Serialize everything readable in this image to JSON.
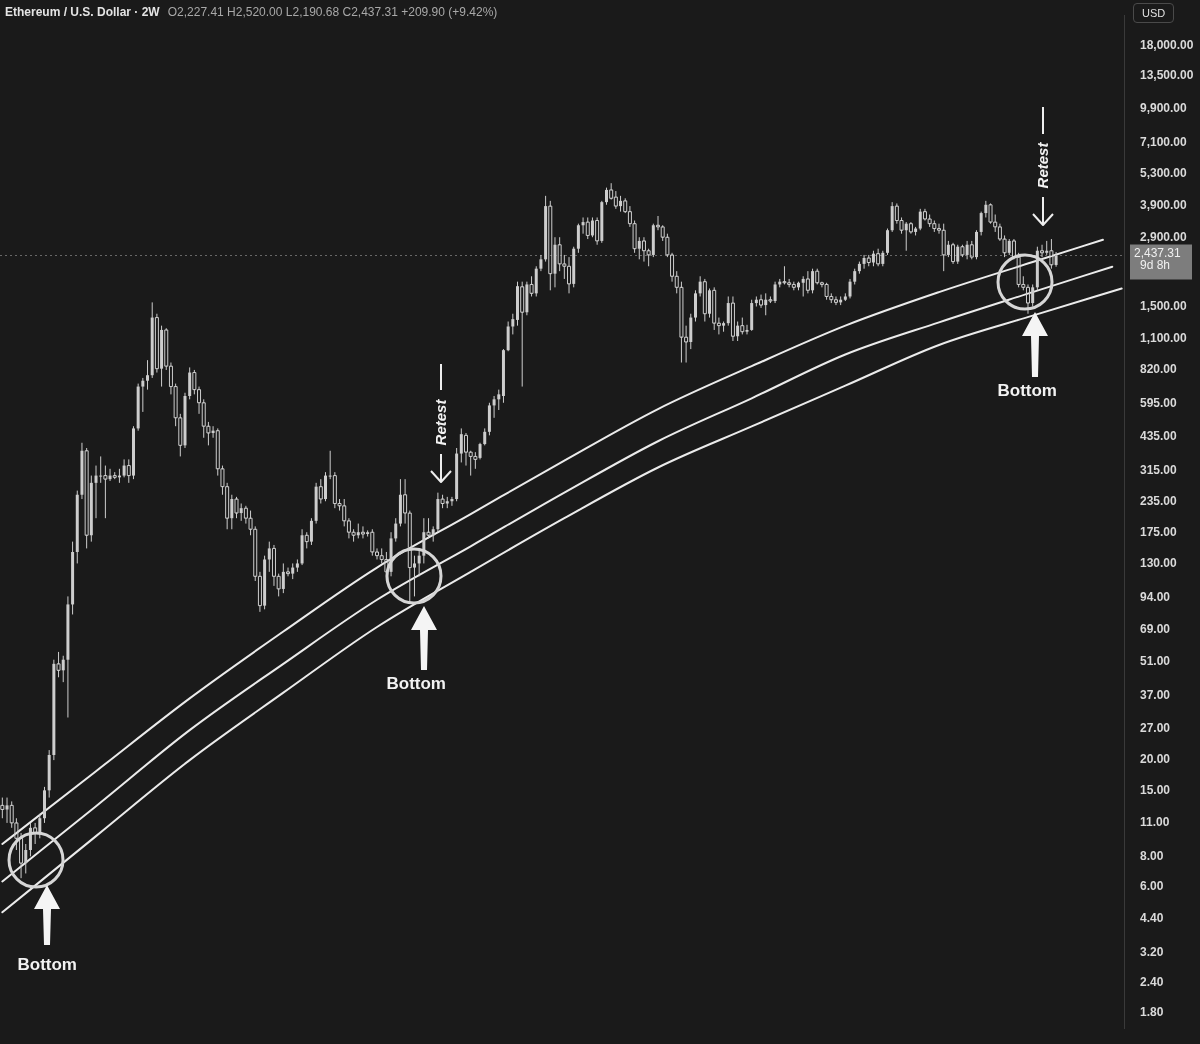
{
  "chart_data": {
    "type": "candlestick",
    "title": "Ethereum / U.S. Dollar · 2W",
    "subtitle": "O2,227.41 H2,520.00 L2,190.68 C2,437.31 +209.90 (+9.42%)",
    "ylabel": "USD",
    "annotations": [
      "Bottom",
      "Bottom",
      "Bottom",
      "Retest",
      "Retest",
      "9d 8h"
    ],
    "categories": [
      null,
      null,
      null,
      null,
      null,
      null,
      null,
      null,
      null,
      null,
      null,
      null,
      null,
      null,
      null,
      null,
      null,
      null,
      null,
      null,
      null,
      null,
      null,
      null,
      null,
      null,
      null,
      null,
      null,
      null,
      null,
      null,
      null,
      null,
      null,
      null,
      null,
      null,
      null,
      null,
      null,
      null,
      null,
      null,
      null,
      null,
      null,
      null,
      null,
      null,
      null,
      null,
      null,
      null,
      null,
      null,
      null,
      null,
      null,
      null,
      null,
      null,
      null,
      null,
      null,
      null,
      null,
      null,
      null,
      null,
      null,
      null,
      null,
      null,
      null,
      null,
      null,
      null,
      null,
      null,
      null,
      null,
      null,
      null,
      null,
      null,
      null,
      null,
      null,
      null,
      null,
      null,
      null,
      null,
      null,
      null,
      null,
      null,
      null,
      null,
      null,
      null,
      null,
      null,
      null,
      null,
      null,
      null,
      null,
      null,
      null,
      null,
      null,
      null,
      null,
      null,
      null,
      null,
      null,
      null,
      null,
      null,
      null,
      null,
      null,
      null,
      null,
      null,
      null,
      null,
      null,
      null,
      null,
      null,
      null,
      null,
      null,
      null,
      null,
      null,
      null,
      null,
      null,
      null,
      null,
      null,
      null,
      null,
      null,
      null,
      null,
      null,
      null,
      null,
      null,
      null,
      null,
      null,
      null,
      null,
      null,
      null,
      null,
      null,
      null,
      null,
      null,
      null,
      null,
      null,
      null,
      null,
      null,
      null,
      null,
      null,
      null,
      null,
      null,
      null,
      null,
      null,
      null,
      null,
      null,
      null,
      null,
      null,
      null,
      null,
      null,
      null,
      null,
      null,
      null,
      null,
      null,
      null,
      null,
      null,
      null,
      null,
      null,
      null,
      null,
      null,
      null,
      null,
      null,
      null,
      null,
      null,
      null,
      null,
      null,
      null,
      null,
      null,
      null,
      null,
      null,
      null,
      null,
      null,
      null,
      null,
      null,
      null,
      null,
      null,
      null,
      null,
      null,
      null,
      null,
      null,
      null,
      null,
      null,
      null
    ],
    "ohlc": [
      [
        13,
        14,
        11.5,
        12.5
      ],
      [
        12.5,
        14,
        11,
        13
      ],
      [
        13,
        13.5,
        10.5,
        11
      ],
      [
        11,
        11.5,
        8.5,
        9.5
      ],
      [
        9.5,
        10,
        6.5,
        7.5
      ],
      [
        7.5,
        9,
        6.8,
        8.5
      ],
      [
        8.5,
        11,
        8,
        10.5
      ],
      [
        10.5,
        11,
        9,
        10
      ],
      [
        10,
        12,
        9.5,
        11.5
      ],
      [
        11.5,
        15.5,
        11,
        15
      ],
      [
        15,
        22,
        14,
        21
      ],
      [
        21,
        52,
        20,
        50
      ],
      [
        50,
        56,
        44,
        47
      ],
      [
        47,
        54,
        42,
        52
      ],
      [
        52,
        95,
        30,
        88
      ],
      [
        88,
        160,
        80,
        145
      ],
      [
        145,
        260,
        130,
        250
      ],
      [
        250,
        410,
        240,
        380
      ],
      [
        380,
        390,
        150,
        170
      ],
      [
        170,
        300,
        160,
        280
      ],
      [
        280,
        330,
        200,
        300
      ],
      [
        300,
        360,
        280,
        300
      ],
      [
        300,
        330,
        200,
        290
      ],
      [
        290,
        320,
        285,
        300
      ],
      [
        300,
        310,
        290,
        295
      ],
      [
        295,
        320,
        280,
        300
      ],
      [
        300,
        350,
        295,
        330
      ],
      [
        330,
        350,
        280,
        300
      ],
      [
        300,
        480,
        290,
        470
      ],
      [
        470,
        720,
        460,
        700
      ],
      [
        700,
        760,
        550,
        740
      ],
      [
        740,
        900,
        680,
        780
      ],
      [
        780,
        1560,
        760,
        1350
      ],
      [
        1350,
        1400,
        800,
        830
      ],
      [
        830,
        1250,
        700,
        1200
      ],
      [
        1200,
        1220,
        820,
        850
      ],
      [
        850,
        880,
        650,
        700
      ],
      [
        700,
        720,
        480,
        520
      ],
      [
        520,
        540,
        360,
        400
      ],
      [
        400,
        660,
        390,
        640
      ],
      [
        640,
        840,
        620,
        800
      ],
      [
        800,
        820,
        650,
        680
      ],
      [
        680,
        700,
        540,
        600
      ],
      [
        600,
        620,
        430,
        480
      ],
      [
        480,
        500,
        400,
        450
      ],
      [
        450,
        480,
        430,
        460
      ],
      [
        460,
        470,
        300,
        320
      ],
      [
        320,
        330,
        250,
        270
      ],
      [
        270,
        280,
        180,
        200
      ],
      [
        200,
        250,
        180,
        240
      ],
      [
        240,
        245,
        200,
        210
      ],
      [
        210,
        230,
        195,
        220
      ],
      [
        220,
        225,
        190,
        200
      ],
      [
        200,
        215,
        170,
        180
      ],
      [
        180,
        185,
        110,
        115
      ],
      [
        115,
        120,
        82,
        87
      ],
      [
        87,
        140,
        84,
        135
      ],
      [
        135,
        160,
        120,
        150
      ],
      [
        150,
        155,
        105,
        115
      ],
      [
        115,
        118,
        95,
        102
      ],
      [
        102,
        130,
        98,
        120
      ],
      [
        120,
        125,
        115,
        118
      ],
      [
        118,
        130,
        112,
        125
      ],
      [
        125,
        135,
        120,
        130
      ],
      [
        130,
        180,
        128,
        170
      ],
      [
        170,
        175,
        150,
        160
      ],
      [
        160,
        200,
        155,
        195
      ],
      [
        195,
        280,
        190,
        270
      ],
      [
        270,
        290,
        230,
        240
      ],
      [
        240,
        310,
        235,
        300
      ],
      [
        300,
        380,
        290,
        300
      ],
      [
        300,
        310,
        220,
        230
      ],
      [
        230,
        240,
        215,
        225
      ],
      [
        225,
        240,
        185,
        195
      ],
      [
        195,
        200,
        165,
        175
      ],
      [
        175,
        180,
        160,
        170
      ],
      [
        170,
        190,
        165,
        175
      ],
      [
        175,
        185,
        165,
        172
      ],
      [
        172,
        178,
        168,
        175
      ],
      [
        175,
        180,
        140,
        145
      ],
      [
        145,
        150,
        135,
        140
      ],
      [
        140,
        150,
        130,
        135
      ],
      [
        135,
        145,
        110,
        120
      ],
      [
        120,
        175,
        115,
        165
      ],
      [
        165,
        200,
        160,
        190
      ],
      [
        190,
        290,
        185,
        250
      ],
      [
        250,
        290,
        190,
        210
      ],
      [
        210,
        215,
        90,
        125
      ],
      [
        125,
        140,
        95,
        130
      ],
      [
        130,
        150,
        115,
        140
      ],
      [
        140,
        200,
        130,
        175
      ],
      [
        175,
        200,
        165,
        170
      ],
      [
        170,
        185,
        160,
        180
      ],
      [
        180,
        255,
        175,
        240
      ],
      [
        240,
        250,
        220,
        230
      ],
      [
        230,
        245,
        220,
        235
      ],
      [
        235,
        245,
        225,
        240
      ],
      [
        240,
        390,
        235,
        370
      ],
      [
        370,
        470,
        340,
        445
      ],
      [
        440,
        450,
        330,
        375
      ],
      [
        375,
        380,
        300,
        360
      ],
      [
        360,
        375,
        320,
        350
      ],
      [
        355,
        410,
        350,
        405
      ],
      [
        405,
        470,
        400,
        455
      ],
      [
        455,
        600,
        440,
        585
      ],
      [
        585,
        640,
        520,
        620
      ],
      [
        620,
        680,
        560,
        650
      ],
      [
        640,
        1000,
        600,
        990
      ],
      [
        990,
        1300,
        980,
        1240
      ],
      [
        1240,
        1400,
        1150,
        1330
      ],
      [
        1320,
        1900,
        1250,
        1820
      ],
      [
        1810,
        1900,
        700,
        1420
      ],
      [
        1420,
        1900,
        1380,
        1850
      ],
      [
        1850,
        2000,
        1650,
        1700
      ],
      [
        1700,
        2200,
        1650,
        2150
      ],
      [
        2150,
        2450,
        2100,
        2350
      ],
      [
        2350,
        4300,
        2300,
        3900
      ],
      [
        3900,
        4100,
        1750,
        2050
      ],
      [
        2050,
        2900,
        1800,
        2700
      ],
      [
        2700,
        2900,
        2100,
        2250
      ],
      [
        2250,
        2450,
        1950,
        2200
      ],
      [
        2200,
        2400,
        1700,
        1860
      ],
      [
        1860,
        2650,
        1800,
        2600
      ],
      [
        2600,
        3300,
        2500,
        3250
      ],
      [
        3250,
        3500,
        3000,
        3350
      ],
      [
        3350,
        3500,
        2850,
        2950
      ],
      [
        2950,
        3500,
        2900,
        3400
      ],
      [
        3400,
        3500,
        2700,
        2800
      ],
      [
        2800,
        4100,
        2750,
        4050
      ],
      [
        4050,
        4650,
        3950,
        4550
      ],
      [
        4550,
        4850,
        4150,
        4200
      ],
      [
        4250,
        4500,
        3800,
        3900
      ],
      [
        3900,
        4300,
        3700,
        4100
      ],
      [
        4100,
        4200,
        3650,
        3700
      ],
      [
        3700,
        3900,
        3200,
        3300
      ],
      [
        3300,
        3400,
        2500,
        2600
      ],
      [
        2600,
        2900,
        2350,
        2800
      ],
      [
        2800,
        2900,
        2300,
        2550
      ],
      [
        2550,
        2600,
        2200,
        2450
      ],
      [
        2450,
        3300,
        2400,
        3250
      ],
      [
        3250,
        3550,
        3100,
        3200
      ],
      [
        3200,
        3250,
        2800,
        2900
      ],
      [
        2900,
        3000,
        2400,
        2450
      ],
      [
        2450,
        2500,
        1900,
        2000
      ],
      [
        2000,
        2100,
        1700,
        1800
      ],
      [
        1800,
        1900,
        880,
        1120
      ],
      [
        1120,
        1250,
        880,
        1070
      ],
      [
        1070,
        1400,
        1000,
        1350
      ],
      [
        1350,
        1750,
        1300,
        1700
      ],
      [
        1700,
        2000,
        1650,
        1900
      ],
      [
        1900,
        1950,
        1300,
        1400
      ],
      [
        1400,
        1780,
        1350,
        1750
      ],
      [
        1750,
        1800,
        1200,
        1280
      ],
      [
        1280,
        1350,
        1150,
        1250
      ],
      [
        1250,
        1300,
        1180,
        1280
      ],
      [
        1280,
        1650,
        1250,
        1550
      ],
      [
        1550,
        1650,
        1080,
        1130
      ],
      [
        1130,
        1300,
        1080,
        1250
      ],
      [
        1250,
        1350,
        1150,
        1180
      ],
      [
        1180,
        1260,
        1150,
        1200
      ],
      [
        1200,
        1600,
        1190,
        1550
      ],
      [
        1550,
        1650,
        1500,
        1600
      ],
      [
        1600,
        1680,
        1480,
        1520
      ],
      [
        1520,
        1700,
        1380,
        1600
      ],
      [
        1600,
        1650,
        1550,
        1580
      ],
      [
        1580,
        1900,
        1550,
        1850
      ],
      [
        1850,
        1950,
        1800,
        1900
      ],
      [
        1900,
        2200,
        1850,
        1880
      ],
      [
        1880,
        1950,
        1800,
        1850
      ],
      [
        1850,
        1900,
        1750,
        1800
      ],
      [
        1800,
        1900,
        1750,
        1880
      ],
      [
        1880,
        2000,
        1650,
        1950
      ],
      [
        1950,
        2100,
        1700,
        1750
      ],
      [
        1750,
        2150,
        1700,
        2100
      ],
      [
        2100,
        2150,
        1850,
        1880
      ],
      [
        1880,
        1900,
        1800,
        1850
      ],
      [
        1850,
        1880,
        1600,
        1650
      ],
      [
        1650,
        1700,
        1550,
        1600
      ],
      [
        1600,
        1650,
        1520,
        1560
      ],
      [
        1560,
        1650,
        1520,
        1600
      ],
      [
        1600,
        1700,
        1580,
        1650
      ],
      [
        1650,
        1950,
        1620,
        1900
      ],
      [
        1900,
        2150,
        1850,
        2100
      ],
      [
        2100,
        2300,
        2050,
        2250
      ],
      [
        2250,
        2450,
        2150,
        2380
      ],
      [
        2380,
        2450,
        2200,
        2280
      ],
      [
        2280,
        2550,
        2200,
        2480
      ],
      [
        2480,
        2600,
        2200,
        2250
      ],
      [
        2250,
        2550,
        2200,
        2500
      ],
      [
        2500,
        3150,
        2450,
        3100
      ],
      [
        3100,
        4050,
        3050,
        3900
      ],
      [
        3900,
        4000,
        3300,
        3400
      ],
      [
        3400,
        3500,
        3000,
        3100
      ],
      [
        3100,
        3350,
        2550,
        3300
      ],
      [
        3300,
        3350,
        3000,
        3050
      ],
      [
        3050,
        3200,
        2950,
        3150
      ],
      [
        3150,
        3800,
        3100,
        3700
      ],
      [
        3700,
        3800,
        3400,
        3450
      ],
      [
        3450,
        3600,
        3200,
        3300
      ],
      [
        3300,
        3400,
        3050,
        3150
      ],
      [
        3150,
        3300,
        3000,
        3100
      ],
      [
        3100,
        3300,
        2100,
        2450
      ],
      [
        2450,
        2800,
        2400,
        2700
      ],
      [
        2700,
        2750,
        2250,
        2300
      ],
      [
        2300,
        2700,
        2250,
        2650
      ],
      [
        2650,
        2700,
        2400,
        2450
      ],
      [
        2450,
        2800,
        2350,
        2700
      ],
      [
        2700,
        2800,
        2350,
        2400
      ],
      [
        2400,
        3100,
        2350,
        3050
      ],
      [
        3050,
        3700,
        2950,
        3650
      ],
      [
        3650,
        4100,
        3500,
        3950
      ],
      [
        3950,
        4000,
        3300,
        3350
      ],
      [
        3350,
        3600,
        3050,
        3200
      ],
      [
        3200,
        3300,
        2800,
        2850
      ],
      [
        2850,
        2950,
        2400,
        2500
      ],
      [
        2500,
        2850,
        2450,
        2800
      ],
      [
        2800,
        2850,
        2350,
        2400
      ],
      [
        2400,
        2500,
        1800,
        1850
      ],
      [
        1850,
        2000,
        1750,
        1800
      ],
      [
        1800,
        1850,
        1400,
        1550
      ],
      [
        1550,
        1850,
        1500,
        1800
      ],
      [
        1800,
        2650,
        1750,
        2550
      ],
      [
        2550,
        2700,
        2400,
        2500
      ],
      [
        2500,
        2800,
        2450,
        2550
      ],
      [
        2550,
        2850,
        2150,
        2230
      ],
      [
        2227.41,
        2520,
        2190.68,
        2437.31
      ],
      null,
      null,
      null,
      null,
      null,
      null,
      null,
      null,
      null,
      null,
      null,
      null,
      null,
      null
    ],
    "color": "#cdcdcd",
    "series": [
      {
        "type": "line",
        "color": "#ebebeb",
        "values": [
          9.0,
          null,
          null,
          null,
          null,
          null,
          null,
          null,
          null,
          null,
          null,
          null,
          null,
          null,
          null,
          null,
          null,
          null,
          null,
          null,
          18,
          null,
          null,
          null,
          null,
          null,
          null,
          null,
          null,
          null,
          null,
          null,
          null,
          null,
          null,
          null,
          null,
          null,
          null,
          null,
          36,
          null,
          null,
          null,
          null,
          null,
          null,
          null,
          null,
          null,
          null,
          null,
          null,
          null,
          null,
          null,
          null,
          null,
          null,
          null,
          68,
          null,
          null,
          null,
          null,
          null,
          null,
          null,
          null,
          null,
          null,
          null,
          null,
          null,
          null,
          null,
          null,
          null,
          null,
          null,
          125,
          null,
          null,
          null,
          null,
          null,
          null,
          null,
          null,
          null,
          null,
          null,
          null,
          null,
          null,
          null,
          null,
          null,
          null,
          null,
          208,
          null,
          null,
          null,
          null,
          null,
          null,
          null,
          null,
          null,
          null,
          null,
          null,
          null,
          null,
          null,
          null,
          null,
          null,
          null,
          346,
          null,
          null,
          null,
          null,
          null,
          null,
          null,
          null,
          null,
          null,
          null,
          null,
          null,
          null,
          null,
          null,
          null,
          null,
          null,
          565,
          null,
          null,
          null,
          null,
          null,
          null,
          null,
          null,
          null,
          null,
          null,
          null,
          null,
          null,
          null,
          null,
          null,
          null,
          null,
          850,
          null,
          null,
          null,
          null,
          null,
          null,
          null,
          null,
          null,
          null,
          null,
          null,
          null,
          null,
          null,
          null,
          null,
          null,
          null,
          1250,
          null,
          null,
          null,
          null,
          null,
          null,
          null,
          null,
          null,
          null,
          null,
          null,
          null,
          null,
          null,
          null,
          null,
          null,
          null,
          1720,
          null,
          null,
          null,
          null,
          null,
          null,
          null,
          null,
          null,
          null,
          null,
          null,
          null,
          null,
          null,
          null,
          null,
          null,
          null,
          2290,
          null,
          null,
          null,
          null,
          null,
          null,
          null,
          null,
          null,
          null,
          null,
          null,
          null,
          null,
          2830,
          null,
          null,
          null,
          null
        ]
      },
      {
        "type": "line",
        "color": "#ebebeb",
        "values": [
          6.3,
          null,
          null,
          null,
          null,
          null,
          null,
          null,
          null,
          null,
          null,
          null,
          null,
          null,
          null,
          null,
          null,
          null,
          null,
          null,
          12.9,
          null,
          null,
          null,
          null,
          null,
          null,
          null,
          null,
          null,
          null,
          null,
          null,
          null,
          null,
          null,
          null,
          null,
          null,
          null,
          26.6,
          null,
          null,
          null,
          null,
          null,
          null,
          null,
          null,
          null,
          null,
          null,
          null,
          null,
          null,
          null,
          null,
          null,
          null,
          null,
          50,
          null,
          null,
          null,
          null,
          null,
          null,
          null,
          null,
          null,
          null,
          null,
          null,
          null,
          null,
          null,
          null,
          null,
          null,
          null,
          92,
          null,
          null,
          null,
          null,
          null,
          null,
          null,
          null,
          null,
          null,
          null,
          null,
          null,
          null,
          null,
          null,
          null,
          null,
          null,
          153,
          null,
          null,
          null,
          null,
          null,
          null,
          null,
          null,
          null,
          null,
          null,
          null,
          null,
          null,
          null,
          null,
          null,
          null,
          null,
          255,
          null,
          null,
          null,
          null,
          null,
          null,
          null,
          null,
          null,
          null,
          null,
          null,
          null,
          null,
          null,
          null,
          null,
          null,
          null,
          416,
          null,
          null,
          null,
          null,
          null,
          null,
          null,
          null,
          null,
          null,
          null,
          null,
          null,
          null,
          null,
          null,
          null,
          null,
          null,
          626,
          null,
          null,
          null,
          null,
          null,
          null,
          null,
          null,
          null,
          null,
          null,
          null,
          null,
          null,
          null,
          null,
          null,
          null,
          null,
          950,
          null,
          null,
          null,
          null,
          null,
          null,
          null,
          null,
          null,
          null,
          null,
          null,
          null,
          null,
          null,
          null,
          null,
          null,
          null,
          1290,
          null,
          null,
          null,
          null,
          null,
          null,
          null,
          null,
          null,
          null,
          null,
          null,
          null,
          null,
          null,
          null,
          null,
          null,
          null,
          1720,
          null,
          null,
          null,
          null,
          null,
          null,
          null,
          null,
          null,
          null,
          null,
          null,
          null,
          null,
          null,
          null,
          2190,
          null,
          null
        ]
      },
      {
        "type": "line",
        "color": "#ebebeb",
        "values": [
          4.7,
          null,
          null,
          null,
          null,
          null,
          null,
          null,
          null,
          null,
          null,
          null,
          null,
          null,
          null,
          null,
          null,
          null,
          null,
          null,
          9.7,
          null,
          null,
          null,
          null,
          null,
          null,
          null,
          null,
          null,
          null,
          null,
          null,
          null,
          null,
          null,
          null,
          null,
          null,
          null,
          20,
          null,
          null,
          null,
          null,
          null,
          null,
          null,
          null,
          null,
          null,
          null,
          null,
          null,
          null,
          null,
          null,
          null,
          null,
          null,
          38,
          null,
          null,
          null,
          null,
          null,
          null,
          null,
          null,
          null,
          null,
          null,
          null,
          null,
          null,
          null,
          null,
          null,
          null,
          null,
          71,
          null,
          null,
          null,
          null,
          null,
          null,
          null,
          null,
          null,
          null,
          null,
          null,
          null,
          null,
          null,
          null,
          null,
          null,
          null,
          120,
          null,
          null,
          null,
          null,
          null,
          null,
          null,
          null,
          null,
          null,
          null,
          null,
          null,
          null,
          null,
          null,
          null,
          null,
          null,
          200,
          null,
          null,
          null,
          null,
          null,
          null,
          null,
          null,
          null,
          null,
          null,
          null,
          null,
          null,
          null,
          null,
          null,
          null,
          null,
          324,
          null,
          null,
          null,
          null,
          null,
          null,
          null,
          null,
          null,
          null,
          null,
          null,
          null,
          null,
          null,
          null,
          null,
          null,
          null,
          479,
          null,
          null,
          null,
          null,
          null,
          null,
          null,
          null,
          null,
          null,
          null,
          null,
          null,
          null,
          null,
          null,
          null,
          null,
          null,
          706,
          null,
          null,
          null,
          null,
          null,
          null,
          null,
          null,
          null,
          null,
          null,
          null,
          null,
          null,
          null,
          null,
          null,
          null,
          null,
          1040,
          null,
          null,
          null,
          null,
          null,
          null,
          null,
          null,
          null,
          null,
          null,
          null,
          null,
          null,
          null,
          null,
          null,
          null,
          null,
          1375,
          null,
          null,
          null,
          null,
          null,
          null,
          null,
          null,
          null,
          null,
          null,
          null,
          null,
          null,
          null,
          null,
          null,
          null,
          1780
        ]
      }
    ],
    "ylim": [
      1.55,
      24000
    ],
    "yticks": [
      {
        "value": 1.8,
        "label": "1.80"
      },
      {
        "value": 2.4,
        "label": "2.40"
      },
      {
        "value": 3.2,
        "label": "3.20"
      },
      {
        "value": 4.4,
        "label": "4.40"
      },
      {
        "value": 6,
        "label": "6.00"
      },
      {
        "value": 8,
        "label": "8.00"
      },
      {
        "value": 11,
        "label": "11.00"
      },
      {
        "value": 15,
        "label": "15.00"
      },
      {
        "value": 20,
        "label": "20.00"
      },
      {
        "value": 27,
        "label": "27.00"
      },
      {
        "value": 37,
        "label": "37.00"
      },
      {
        "value": 51,
        "label": "51.00"
      },
      {
        "value": 69,
        "label": "69.00"
      },
      {
        "value": 94,
        "label": "94.00"
      },
      {
        "value": 130,
        "label": "130.00"
      },
      {
        "value": 175,
        "label": "175.00"
      },
      {
        "value": 235,
        "label": "235.00"
      },
      {
        "value": 315,
        "label": "315.00"
      },
      {
        "value": 435,
        "label": "435.00"
      },
      {
        "value": 595,
        "label": "595.00"
      },
      {
        "value": 820,
        "label": "820.00"
      },
      {
        "value": 1100,
        "label": "1,100.00"
      },
      {
        "value": 1500,
        "label": "1,500.00"
      },
      {
        "value": 2900,
        "label": "2,900.00"
      },
      {
        "value": 3900,
        "label": "3,900.00"
      },
      {
        "value": 5300,
        "label": "5,300.00"
      },
      {
        "value": 7100,
        "label": "7,100.00"
      },
      {
        "value": 9900,
        "label": "9,900.00"
      },
      {
        "value": 13500,
        "label": "13,500.00"
      },
      {
        "value": 18000,
        "label": "18,000.00"
      }
    ],
    "ref_lines": [
      {
        "axis": "y",
        "value": 2437.31,
        "label": "2,437.31",
        "color": "#6a6a6a",
        "line_style": "dotted"
      }
    ],
    "log": "y",
    "tick_labels": "y",
    "marker": "none",
    "line_style": "solid"
  }
}
